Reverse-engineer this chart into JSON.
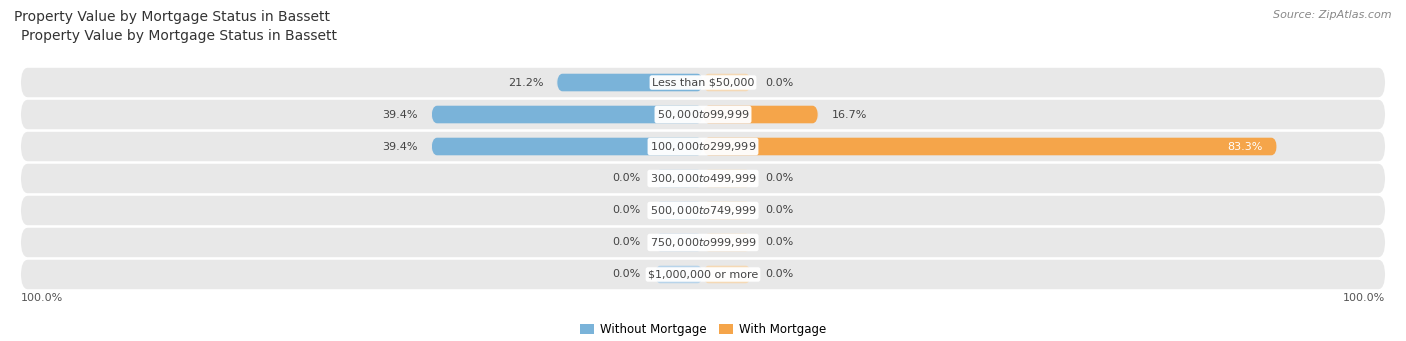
{
  "title": "Property Value by Mortgage Status in Bassett",
  "source": "Source: ZipAtlas.com",
  "categories": [
    "Less than $50,000",
    "$50,000 to $99,999",
    "$100,000 to $299,999",
    "$300,000 to $499,999",
    "$500,000 to $749,999",
    "$750,000 to $999,999",
    "$1,000,000 or more"
  ],
  "without_mortgage": [
    21.2,
    39.4,
    39.4,
    0.0,
    0.0,
    0.0,
    0.0
  ],
  "with_mortgage": [
    0.0,
    16.7,
    83.3,
    0.0,
    0.0,
    0.0,
    0.0
  ],
  "color_without": "#7ab3d9",
  "color_with": "#f5a54a",
  "color_without_zero": "#b8d4ea",
  "color_with_zero": "#f5d9b5",
  "bg_row_color": "#e8e8e8",
  "bg_row_alt": "#f0f0f0",
  "title_fontsize": 10,
  "source_fontsize": 8,
  "label_fontsize": 8,
  "cat_fontsize": 8,
  "axis_label": "100.0%",
  "legend_without": "Without Mortgage",
  "legend_with": "With Mortgage",
  "stub_zero_wm": 5.0,
  "stub_zero_wt": 5.0
}
